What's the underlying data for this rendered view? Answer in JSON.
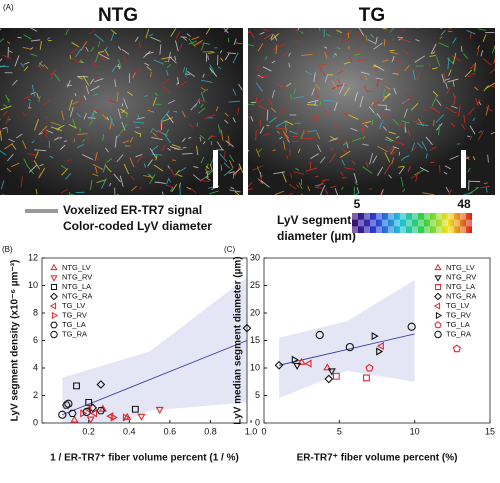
{
  "panel_a": {
    "label": "(A)",
    "left_title": "NTG",
    "right_title": "TG",
    "legend": [
      "Voxelized ER-TR7 signal",
      "Color-coded LyV diameter"
    ],
    "colorbar": {
      "label": [
        "LyV segment",
        "diameter (µm)"
      ],
      "min": 5,
      "max": 48
    }
  },
  "chart_data": [
    {
      "type": "scatter",
      "panel_label": "(B)",
      "x_label": "1 / ER-TR7⁺ fiber volume percent (1 / %)",
      "y_label": "LyV segment density (x10⁻⁶ µm⁻³)",
      "xlim": [
        -0.03,
        0.98
      ],
      "ylim": [
        0,
        12
      ],
      "xticks": [
        0.2,
        0.4,
        0.6,
        0.8,
        {
          "value": 1,
          "label": "1.0"
        }
      ],
      "yticks": [
        0,
        2,
        4,
        6,
        8,
        10,
        12
      ],
      "legend_corner": "top-left",
      "fit": {
        "color": "#3a3f9e",
        "x": [
          0.07,
          0.98
        ],
        "y": [
          0.6,
          6.0
        ]
      },
      "band": {
        "color": "#e4e6f6",
        "x": [
          0.07,
          0.5,
          0.98
        ],
        "upper": [
          3.3,
          5.2,
          10.6
        ],
        "lower": [
          -1.8,
          0.9,
          1.5
        ]
      },
      "series": [
        {
          "name": "NTG_LV",
          "color": "#e0282e",
          "marker": "triangle-up",
          "x": [
            0.27,
            0.39,
            0.13
          ],
          "values": [
            1.0,
            0.4,
            0.2
          ]
        },
        {
          "name": "NTG_RV",
          "color": "#e0282e",
          "marker": "triangle-down",
          "x": [
            0.55,
            0.46,
            0.21
          ],
          "values": [
            1.0,
            0.5,
            0.3
          ]
        },
        {
          "name": "NTG_LA",
          "color": "#111111",
          "marker": "square",
          "x": [
            0.14,
            0.2,
            0.43
          ],
          "values": [
            2.7,
            1.5,
            1.0
          ]
        },
        {
          "name": "NTG_RA",
          "color": "#111111",
          "marker": "diamond",
          "x": [
            0.26,
            0.22,
            0.98
          ],
          "values": [
            2.8,
            1.1,
            6.9
          ]
        },
        {
          "name": "TG_LV",
          "color": "#e0282e",
          "marker": "triangle-left",
          "x": [
            0.2,
            0.23,
            0.31
          ],
          "values": [
            1.0,
            0.7,
            0.5
          ]
        },
        {
          "name": "TG_RV",
          "color": "#e0282e",
          "marker": "triangle-right",
          "x": [
            0.17,
            0.32,
            0.38
          ],
          "values": [
            0.7,
            0.4,
            0.4
          ]
        },
        {
          "name": "TG_LA",
          "color": "#111111",
          "marker": "hexagon",
          "x": [
            0.12,
            0.09,
            0.26
          ],
          "values": [
            0.7,
            1.3,
            0.9
          ]
        },
        {
          "name": "TG_RA",
          "color": "#111111",
          "marker": "circle",
          "x": [
            0.1,
            0.07,
            0.19
          ],
          "values": [
            1.4,
            0.6,
            0.8
          ]
        }
      ]
    },
    {
      "type": "scatter",
      "panel_label": "(C)",
      "x_label": "ER-TR7⁺ fiber volume percent (%)",
      "y_label": "LyV median segment diameter (µm)",
      "xlim": [
        0,
        15
      ],
      "ylim": [
        0,
        30
      ],
      "xticks": [
        0,
        5,
        10,
        15
      ],
      "yticks": [
        0,
        5,
        10,
        15,
        20,
        25,
        30
      ],
      "legend_corner": "top-right",
      "fit": {
        "color": "#3a3f9e",
        "x": [
          1,
          10
        ],
        "y": [
          10.5,
          16.2
        ]
      },
      "band": {
        "color": "#e4e6f6",
        "x": [
          1,
          5.5,
          10
        ],
        "upper": [
          15.5,
          18.5,
          26
        ],
        "lower": [
          4.5,
          9.5,
          7.5
        ]
      },
      "series": [
        {
          "name": "NTG_LV",
          "color": "#e0282e",
          "marker": "triangle-up",
          "x": [
            2.5,
            4.2
          ],
          "values": [
            11,
            10
          ]
        },
        {
          "name": "NTG_RV",
          "color": "#111111",
          "marker": "triangle-down",
          "x": [
            2.2,
            4.5
          ],
          "values": [
            10.5,
            9.5
          ]
        },
        {
          "name": "NTG_LA",
          "color": "#e0282e",
          "marker": "square",
          "x": [
            4.8,
            6.8
          ],
          "values": [
            8.5,
            8.2
          ]
        },
        {
          "name": "NTG_RA",
          "color": "#111111",
          "marker": "diamond",
          "x": [
            1,
            4.3
          ],
          "values": [
            10.5,
            8
          ]
        },
        {
          "name": "TG_LV",
          "color": "#e0282e",
          "marker": "triangle-left",
          "x": [
            7.8,
            3
          ],
          "values": [
            14,
            10.8
          ]
        },
        {
          "name": "TG_RV",
          "color": "#111111",
          "marker": "triangle-right",
          "x": [
            7.3,
            7.6,
            2
          ],
          "values": [
            15.8,
            13,
            11.5
          ]
        },
        {
          "name": "TG_LA",
          "color": "#e0282e",
          "marker": "pentagon",
          "x": [
            7,
            12.8
          ],
          "values": [
            10,
            13.5
          ]
        },
        {
          "name": "TG_RA",
          "color": "#111111",
          "marker": "circle",
          "x": [
            3.7,
            5.7,
            9.8
          ],
          "values": [
            16,
            13.8,
            17.5
          ]
        }
      ]
    }
  ]
}
